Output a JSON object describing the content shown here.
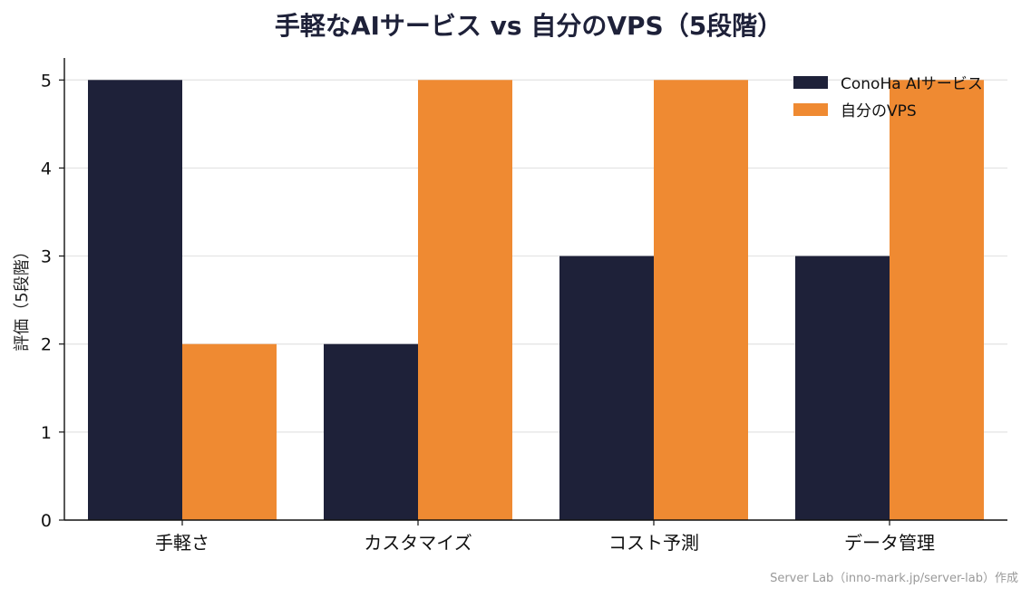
{
  "chart_data": {
    "type": "bar",
    "title": "手軽なAIサービス vs 自分のVPS（5段階）",
    "xlabel": "",
    "ylabel": "評価（5段階）",
    "categories": [
      "手軽さ",
      "カスタマイズ",
      "コスト予測",
      "データ管理"
    ],
    "series": [
      {
        "name": "ConoHa AIサービス",
        "values": [
          5,
          2,
          3,
          3
        ],
        "color": "#1e2139"
      },
      {
        "name": "自分のVPS",
        "values": [
          2,
          5,
          5,
          5
        ],
        "color": "#ef8a32"
      }
    ],
    "ylim": [
      0,
      5.25
    ],
    "yticks": [
      0,
      1,
      2,
      3,
      4,
      5
    ],
    "grid": "horizontal",
    "legend": "top-right"
  },
  "footer": "Server Lab（inno-mark.jp/server-lab）作成"
}
